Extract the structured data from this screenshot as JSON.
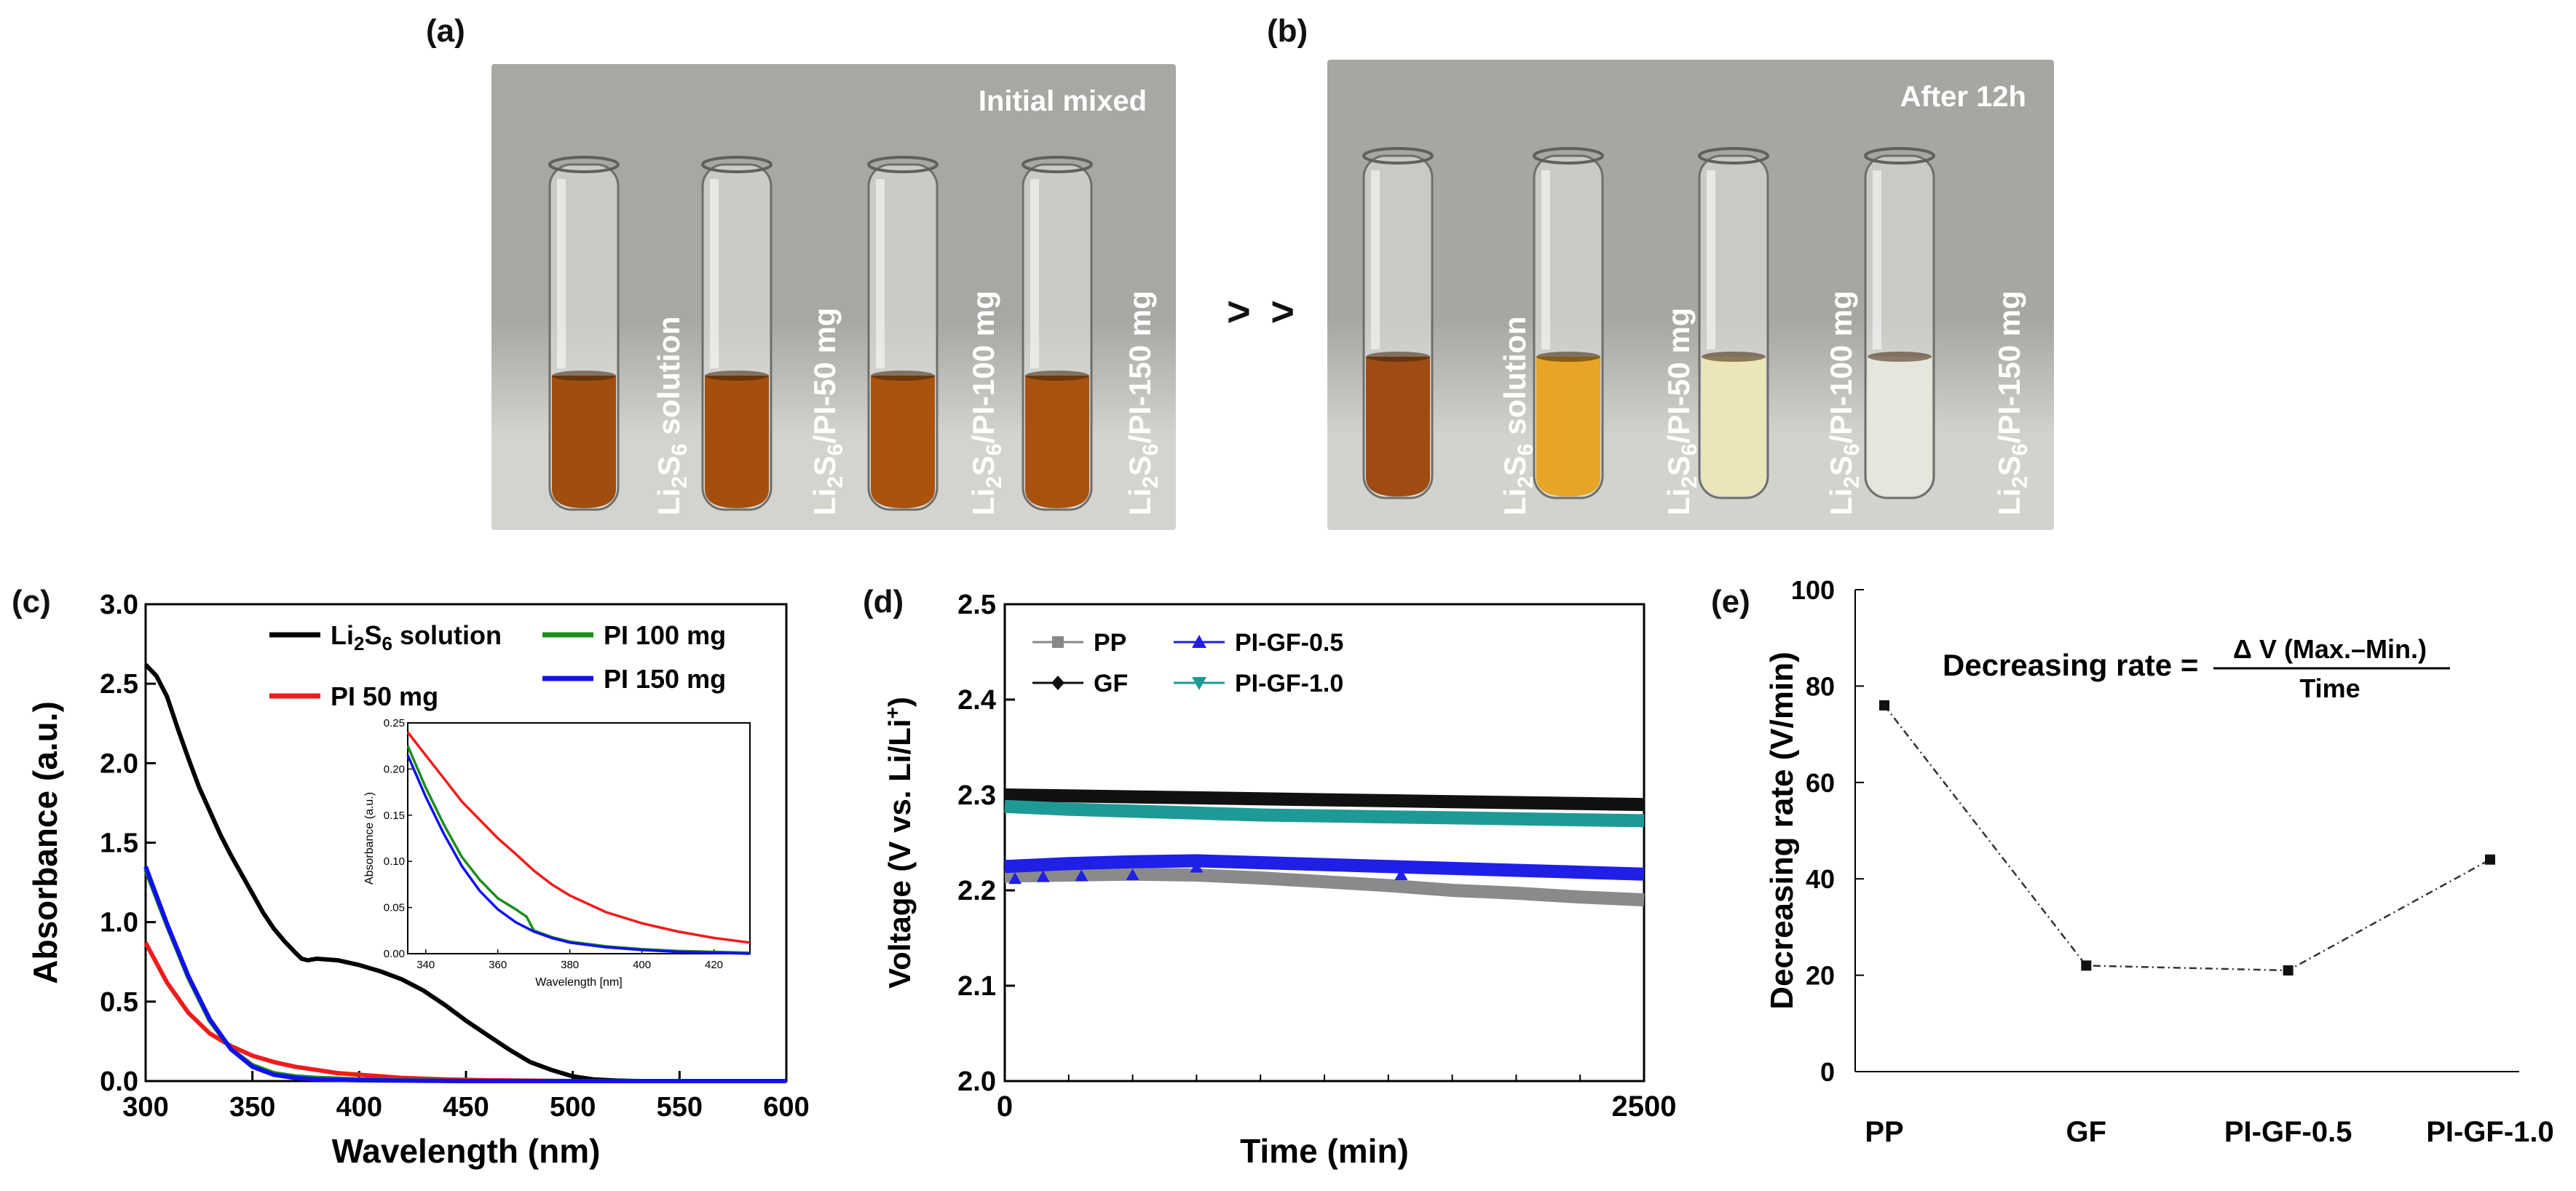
{
  "panel_labels": {
    "a": "(a)",
    "b": "(b)",
    "c": "(c)",
    "d": "(d)",
    "e": "(e)"
  },
  "photo_a": {
    "title": "Initial mixed",
    "colors": {
      "bg_top": "#a7a8a3",
      "bg_bottom": "#d4d3cd",
      "liquid": [
        "#a04d10",
        "#a54f0e",
        "#a9530f",
        "#a9520f"
      ]
    },
    "vials": [
      {
        "pre": "Li",
        "sub1": "2",
        "mid": "S",
        "sub2": "6",
        "post": " solution"
      },
      {
        "pre": "Li",
        "sub1": "2",
        "mid": "S",
        "sub2": "6",
        "post": "/PI-50 mg"
      },
      {
        "pre": "Li",
        "sub1": "2",
        "mid": "S",
        "sub2": "6",
        "post": "/PI-100 mg"
      },
      {
        "pre": "Li",
        "sub1": "2",
        "mid": "S",
        "sub2": "6",
        "post": "/PI-150 mg"
      }
    ]
  },
  "arrow_text": "> >",
  "photo_b": {
    "title": "After 12h",
    "colors": {
      "bg_top": "#a6a7a2",
      "bg_bottom": "#d3d2cc",
      "liquid": [
        "#9e4c14",
        "#e6a526",
        "#ece5b8",
        "#e6e7dc"
      ]
    },
    "vials": [
      {
        "pre": "Li",
        "sub1": "2",
        "mid": "S",
        "sub2": "6",
        "post": " solution"
      },
      {
        "pre": "Li",
        "sub1": "2",
        "mid": "S",
        "sub2": "6",
        "post": "/PI-50 mg"
      },
      {
        "pre": "Li",
        "sub1": "2",
        "mid": "S",
        "sub2": "6",
        "post": "/PI-100 mg"
      },
      {
        "pre": "Li",
        "sub1": "2",
        "mid": "S",
        "sub2": "6",
        "post": "/PI-150 mg"
      }
    ]
  },
  "chart_data": [
    {
      "id": "c",
      "type": "line",
      "title": "",
      "xlabel": "Wavelength (nm)",
      "ylabel": "Absorbance (a.u.)",
      "xlim": [
        300,
        600
      ],
      "ylim": [
        0,
        3.0
      ],
      "xticks": [
        300,
        350,
        400,
        450,
        500,
        550,
        600
      ],
      "yticks": [
        0.0,
        0.5,
        1.0,
        1.5,
        2.0,
        2.5,
        3.0
      ],
      "ytick_labels": [
        "0.0",
        "0.5",
        "1.0",
        "1.5",
        "2.0",
        "2.5",
        "3.0"
      ],
      "legend": [
        {
          "pre": "Li",
          "sub1": "2",
          "mid": "S",
          "sub2": "6",
          "post": " solution",
          "color": "#000000"
        },
        {
          "text": "PI 50 mg",
          "color": "#ee1c1c"
        },
        {
          "text": "PI 100 mg",
          "color": "#1a8f1a"
        },
        {
          "text": "PI 150 mg",
          "color": "#1010ee"
        }
      ],
      "series": [
        {
          "name": "Li2S6 solution",
          "color": "#000000",
          "x": [
            300,
            305,
            310,
            315,
            320,
            325,
            330,
            335,
            340,
            345,
            350,
            355,
            360,
            365,
            370,
            373,
            376,
            380,
            390,
            400,
            410,
            420,
            430,
            440,
            450,
            460,
            470,
            480,
            490,
            500,
            510,
            520,
            530,
            550,
            600
          ],
          "y": [
            2.62,
            2.55,
            2.42,
            2.22,
            2.03,
            1.85,
            1.7,
            1.55,
            1.42,
            1.3,
            1.18,
            1.06,
            0.96,
            0.88,
            0.81,
            0.77,
            0.76,
            0.77,
            0.76,
            0.73,
            0.69,
            0.64,
            0.57,
            0.48,
            0.38,
            0.29,
            0.2,
            0.12,
            0.07,
            0.03,
            0.01,
            0.003,
            0.0,
            0.0,
            0.0
          ]
        },
        {
          "name": "PI 50 mg",
          "color": "#ee1c1c",
          "x": [
            300,
            310,
            320,
            330,
            340,
            350,
            360,
            370,
            380,
            390,
            400,
            420,
            440,
            460,
            500,
            600
          ],
          "y": [
            0.87,
            0.62,
            0.43,
            0.3,
            0.22,
            0.16,
            0.12,
            0.09,
            0.07,
            0.05,
            0.04,
            0.02,
            0.01,
            0.005,
            0.0,
            0.0
          ]
        },
        {
          "name": "PI 100 mg",
          "color": "#1a8f1a",
          "x": [
            300,
            310,
            320,
            330,
            340,
            350,
            360,
            370,
            380,
            400,
            450,
            600
          ],
          "y": [
            1.33,
            0.98,
            0.65,
            0.38,
            0.2,
            0.1,
            0.05,
            0.03,
            0.02,
            0.01,
            0.0,
            0.0
          ]
        },
        {
          "name": "PI 150 mg",
          "color": "#1010ee",
          "x": [
            300,
            310,
            320,
            330,
            340,
            350,
            360,
            370,
            380,
            400,
            450,
            600
          ],
          "y": [
            1.35,
            0.99,
            0.66,
            0.39,
            0.2,
            0.09,
            0.04,
            0.02,
            0.01,
            0.005,
            0.0,
            0.0
          ]
        }
      ],
      "inset": {
        "xlabel": "Wavelength [nm]",
        "ylabel": "Absorbance (a.u.)",
        "xlim": [
          335,
          430
        ],
        "ylim": [
          0,
          0.25
        ],
        "xticks": [
          340,
          360,
          380,
          400,
          420
        ],
        "yticks": [
          0.0,
          0.05,
          0.1,
          0.15,
          0.2,
          0.25
        ],
        "ytick_labels": [
          "0.00",
          "0.05",
          "0.10",
          "0.15",
          "0.20",
          "0.25"
        ],
        "series": [
          {
            "name": "PI 50 mg",
            "color": "#ee1c1c",
            "x": [
              335,
              340,
              345,
              350,
              355,
              360,
              365,
              370,
              375,
              380,
              390,
              400,
              410,
              420,
              430
            ],
            "y": [
              0.24,
              0.215,
              0.19,
              0.165,
              0.145,
              0.125,
              0.108,
              0.09,
              0.075,
              0.063,
              0.045,
              0.033,
              0.024,
              0.017,
              0.012
            ]
          },
          {
            "name": "PI 100 mg",
            "color": "#1a8f1a",
            "x": [
              335,
              340,
              345,
              350,
              355,
              360,
              365,
              368,
              370,
              375,
              380,
              390,
              400,
              410,
              420,
              430
            ],
            "y": [
              0.225,
              0.18,
              0.14,
              0.105,
              0.08,
              0.06,
              0.048,
              0.04,
              0.025,
              0.018,
              0.013,
              0.008,
              0.005,
              0.003,
              0.002,
              0.001
            ]
          },
          {
            "name": "PI 150 mg",
            "color": "#1010ee",
            "x": [
              335,
              340,
              345,
              350,
              355,
              360,
              365,
              370,
              375,
              380,
              390,
              400,
              410,
              420,
              430
            ],
            "y": [
              0.215,
              0.17,
              0.13,
              0.095,
              0.068,
              0.048,
              0.034,
              0.024,
              0.017,
              0.012,
              0.007,
              0.004,
              0.002,
              0.001,
              0.0
            ]
          }
        ]
      }
    },
    {
      "id": "d",
      "type": "scatter",
      "title": "",
      "xlabel": "Time (min)",
      "ylabel_parts": {
        "main": "Voltage (V vs. Li/Li",
        "sup": "+",
        "close": ")"
      },
      "xlim": [
        0,
        2500
      ],
      "ylim": [
        2.0,
        2.5
      ],
      "xticks": [
        0,
        2500
      ],
      "xticks_minor": [
        250,
        500,
        750,
        1000,
        1250,
        1500,
        1750,
        2000,
        2250
      ],
      "yticks": [
        2.0,
        2.1,
        2.2,
        2.3,
        2.4,
        2.5
      ],
      "ytick_labels": [
        "2.0",
        "2.1",
        "2.2",
        "2.3",
        "2.4",
        "2.5"
      ],
      "legend": [
        {
          "text": "PP",
          "color": "#888888",
          "marker": "square"
        },
        {
          "text": "PI-GF-0.5",
          "color": "#1f1fe6",
          "marker": "triangle"
        },
        {
          "text": "GF",
          "color": "#111111",
          "marker": "diamond"
        },
        {
          "text": "PI-GF-1.0",
          "color": "#1e9a96",
          "marker": "triangle-down"
        }
      ],
      "series": [
        {
          "name": "PP",
          "color": "#8a8a8a",
          "x": [
            0,
            250,
            500,
            750,
            1000,
            1250,
            1500,
            1750,
            2000,
            2250,
            2500
          ],
          "y": [
            2.215,
            2.216,
            2.217,
            2.216,
            2.213,
            2.209,
            2.205,
            2.2,
            2.197,
            2.193,
            2.19
          ]
        },
        {
          "name": "GF",
          "color": "#111111",
          "x": [
            0,
            250,
            500,
            750,
            1000,
            1250,
            1500,
            1750,
            2000,
            2250,
            2500
          ],
          "y": [
            2.3,
            2.299,
            2.298,
            2.297,
            2.296,
            2.295,
            2.294,
            2.293,
            2.292,
            2.291,
            2.29
          ]
        },
        {
          "name": "PI-GF-0.5",
          "color": "#1f1fe6",
          "x": [
            0,
            250,
            500,
            750,
            1000,
            1250,
            1500,
            1750,
            2000,
            2250,
            2500
          ],
          "y": [
            2.225,
            2.228,
            2.23,
            2.231,
            2.229,
            2.227,
            2.225,
            2.223,
            2.221,
            2.219,
            2.217
          ]
        },
        {
          "name": "PI-GF-1.0",
          "color": "#1e9a96",
          "x": [
            0,
            250,
            500,
            750,
            1000,
            1250,
            1500,
            1750,
            2000,
            2250,
            2500
          ],
          "y": [
            2.288,
            2.285,
            2.283,
            2.281,
            2.279,
            2.278,
            2.277,
            2.276,
            2.275,
            2.274,
            2.273
          ]
        }
      ]
    },
    {
      "id": "e",
      "type": "line",
      "title": "",
      "xlabel": "",
      "ylabel": "Decreasing rate (V/min)",
      "categories": [
        "PP",
        "GF",
        "PI-GF-0.5",
        "PI-GF-1.0"
      ],
      "values": [
        76,
        22,
        21,
        44
      ],
      "ylim": [
        0,
        100
      ],
      "yticks": [
        0,
        20,
        40,
        60,
        80,
        100
      ],
      "ytick_labels": [
        "0",
        "20",
        "40",
        "60",
        "80",
        "100"
      ],
      "formula": {
        "lhs": "Decreasing rate =",
        "numerator": "Δ V (Max.–Min.)",
        "denominator": "Time"
      }
    }
  ]
}
